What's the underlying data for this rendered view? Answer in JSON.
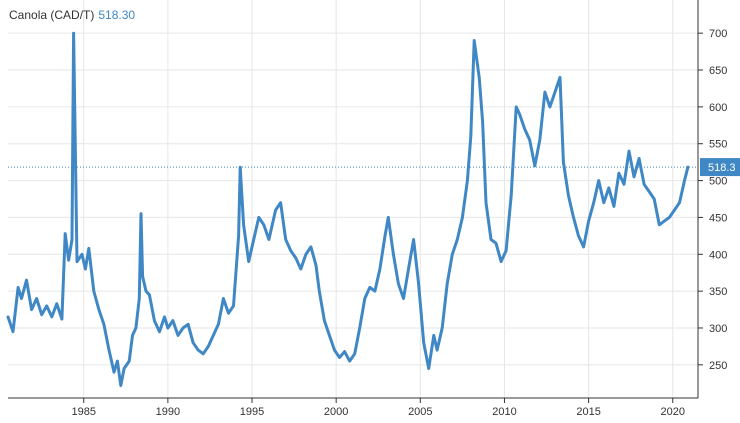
{
  "chart_data": {
    "type": "line",
    "title": "Canola (CAD/T)",
    "last_value_label": "518.30",
    "price_tag": "518.3",
    "xlim": [
      1980.5,
      2021.5
    ],
    "ylim": [
      205,
      745
    ],
    "x_ticks": [
      {
        "v": 1985,
        "label": "1985"
      },
      {
        "v": 1990,
        "label": "1990"
      },
      {
        "v": 1995,
        "label": "1995"
      },
      {
        "v": 2000,
        "label": "2000"
      },
      {
        "v": 2005,
        "label": "2005"
      },
      {
        "v": 2010,
        "label": "2010"
      },
      {
        "v": 2015,
        "label": "2015"
      },
      {
        "v": 2020,
        "label": "2020"
      }
    ],
    "y_ticks": [
      {
        "v": 250,
        "label": "250"
      },
      {
        "v": 300,
        "label": "300"
      },
      {
        "v": 350,
        "label": "350"
      },
      {
        "v": 400,
        "label": "400"
      },
      {
        "v": 450,
        "label": "450"
      },
      {
        "v": 500,
        "label": "500"
      },
      {
        "v": 550,
        "label": "550"
      },
      {
        "v": 600,
        "label": "600"
      },
      {
        "v": 650,
        "label": "650"
      },
      {
        "v": 700,
        "label": "700"
      }
    ],
    "grid": true,
    "colors": {
      "line": "#3f88c5",
      "grid": "#e6e6e6",
      "ref_line": "#3f88c5",
      "price_tag_bg": "#3f88c5",
      "axis": "#333333"
    },
    "series": [
      {
        "values": [
          [
            1980.5,
            315
          ],
          [
            1980.8,
            295
          ],
          [
            1981.1,
            355
          ],
          [
            1981.3,
            340
          ],
          [
            1981.6,
            365
          ],
          [
            1981.9,
            325
          ],
          [
            1982.2,
            340
          ],
          [
            1982.5,
            318
          ],
          [
            1982.8,
            330
          ],
          [
            1983.1,
            315
          ],
          [
            1983.4,
            333
          ],
          [
            1983.7,
            312
          ],
          [
            1983.9,
            428
          ],
          [
            1984.1,
            392
          ],
          [
            1984.3,
            420
          ],
          [
            1984.4,
            700
          ],
          [
            1984.6,
            390
          ],
          [
            1984.9,
            400
          ],
          [
            1985.1,
            380
          ],
          [
            1985.3,
            408
          ],
          [
            1985.6,
            350
          ],
          [
            1985.9,
            325
          ],
          [
            1986.2,
            305
          ],
          [
            1986.5,
            270
          ],
          [
            1986.8,
            240
          ],
          [
            1987.0,
            255
          ],
          [
            1987.2,
            222
          ],
          [
            1987.4,
            245
          ],
          [
            1987.7,
            255
          ],
          [
            1987.9,
            290
          ],
          [
            1988.1,
            300
          ],
          [
            1988.3,
            340
          ],
          [
            1988.4,
            455
          ],
          [
            1988.5,
            370
          ],
          [
            1988.7,
            350
          ],
          [
            1988.9,
            345
          ],
          [
            1989.2,
            310
          ],
          [
            1989.5,
            295
          ],
          [
            1989.8,
            315
          ],
          [
            1990.0,
            300
          ],
          [
            1990.3,
            310
          ],
          [
            1990.6,
            290
          ],
          [
            1990.9,
            300
          ],
          [
            1991.2,
            305
          ],
          [
            1991.5,
            280
          ],
          [
            1991.8,
            270
          ],
          [
            1992.1,
            265
          ],
          [
            1992.4,
            275
          ],
          [
            1992.7,
            290
          ],
          [
            1993.0,
            305
          ],
          [
            1993.3,
            340
          ],
          [
            1993.6,
            320
          ],
          [
            1993.9,
            330
          ],
          [
            1994.2,
            425
          ],
          [
            1994.3,
            518
          ],
          [
            1994.5,
            440
          ],
          [
            1994.8,
            390
          ],
          [
            1995.1,
            420
          ],
          [
            1995.4,
            450
          ],
          [
            1995.7,
            440
          ],
          [
            1996.0,
            420
          ],
          [
            1996.4,
            460
          ],
          [
            1996.7,
            470
          ],
          [
            1997.0,
            420
          ],
          [
            1997.3,
            405
          ],
          [
            1997.6,
            395
          ],
          [
            1997.9,
            380
          ],
          [
            1998.2,
            400
          ],
          [
            1998.5,
            410
          ],
          [
            1998.8,
            385
          ],
          [
            1999.0,
            350
          ],
          [
            1999.3,
            310
          ],
          [
            1999.6,
            290
          ],
          [
            1999.9,
            270
          ],
          [
            2000.2,
            260
          ],
          [
            2000.5,
            268
          ],
          [
            2000.8,
            255
          ],
          [
            2001.1,
            265
          ],
          [
            2001.4,
            300
          ],
          [
            2001.7,
            340
          ],
          [
            2002.0,
            355
          ],
          [
            2002.3,
            350
          ],
          [
            2002.6,
            380
          ],
          [
            2002.9,
            425
          ],
          [
            2003.1,
            450
          ],
          [
            2003.4,
            400
          ],
          [
            2003.7,
            360
          ],
          [
            2004.0,
            340
          ],
          [
            2004.3,
            380
          ],
          [
            2004.6,
            420
          ],
          [
            2004.9,
            360
          ],
          [
            2005.2,
            280
          ],
          [
            2005.5,
            245
          ],
          [
            2005.8,
            290
          ],
          [
            2006.0,
            270
          ],
          [
            2006.3,
            300
          ],
          [
            2006.6,
            360
          ],
          [
            2006.9,
            400
          ],
          [
            2007.2,
            420
          ],
          [
            2007.5,
            450
          ],
          [
            2007.8,
            500
          ],
          [
            2008.0,
            560
          ],
          [
            2008.2,
            690
          ],
          [
            2008.5,
            640
          ],
          [
            2008.7,
            580
          ],
          [
            2008.9,
            470
          ],
          [
            2009.2,
            420
          ],
          [
            2009.5,
            415
          ],
          [
            2009.8,
            390
          ],
          [
            2010.1,
            405
          ],
          [
            2010.4,
            480
          ],
          [
            2010.7,
            600
          ],
          [
            2010.9,
            590
          ],
          [
            2011.2,
            570
          ],
          [
            2011.5,
            555
          ],
          [
            2011.8,
            520
          ],
          [
            2012.1,
            555
          ],
          [
            2012.4,
            620
          ],
          [
            2012.7,
            600
          ],
          [
            2013.0,
            620
          ],
          [
            2013.3,
            640
          ],
          [
            2013.5,
            525
          ],
          [
            2013.8,
            480
          ],
          [
            2014.1,
            450
          ],
          [
            2014.4,
            425
          ],
          [
            2014.7,
            410
          ],
          [
            2015.0,
            445
          ],
          [
            2015.3,
            470
          ],
          [
            2015.6,
            500
          ],
          [
            2015.9,
            470
          ],
          [
            2016.2,
            490
          ],
          [
            2016.5,
            465
          ],
          [
            2016.8,
            510
          ],
          [
            2017.1,
            495
          ],
          [
            2017.4,
            540
          ],
          [
            2017.7,
            505
          ],
          [
            2018.0,
            530
          ],
          [
            2018.3,
            495
          ],
          [
            2018.6,
            485
          ],
          [
            2018.9,
            475
          ],
          [
            2019.2,
            440
          ],
          [
            2019.5,
            445
          ],
          [
            2019.8,
            450
          ],
          [
            2020.1,
            460
          ],
          [
            2020.4,
            470
          ],
          [
            2020.7,
            500
          ],
          [
            2020.9,
            518.3
          ]
        ]
      }
    ]
  }
}
